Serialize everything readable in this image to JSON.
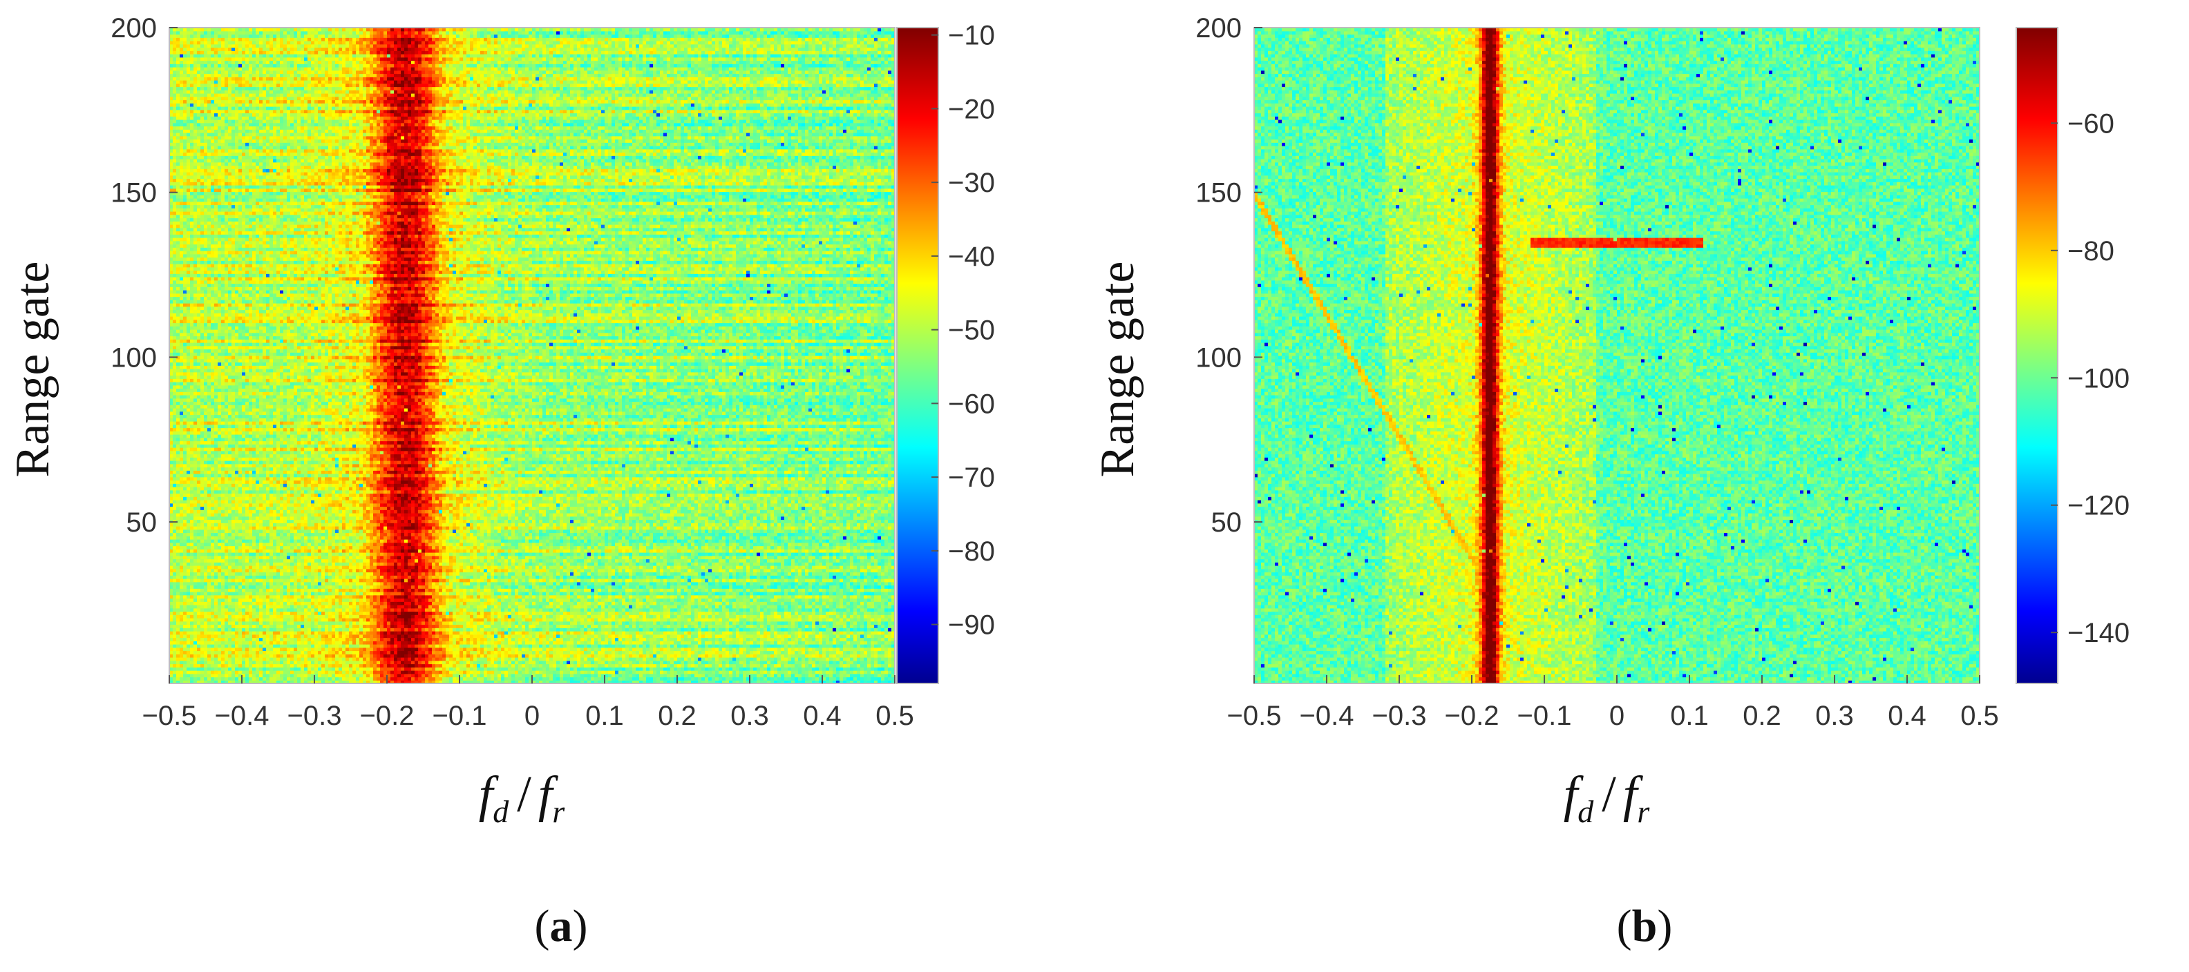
{
  "chart_data": [
    {
      "type": "heatmap",
      "panel_label_open": "(",
      "panel_label": "a",
      "panel_label_close": ")",
      "ylabel": "Range gate",
      "xlabel_f": "f",
      "xlabel_num_sub": "d",
      "xlabel_slash": "/",
      "xlabel_den_sub": "r",
      "xlim": [
        -0.5,
        0.5
      ],
      "ylim": [
        1,
        200
      ],
      "x_ticks": [
        -0.5,
        -0.4,
        -0.3,
        -0.2,
        -0.1,
        0,
        0.1,
        0.2,
        0.3,
        0.4,
        0.5
      ],
      "x_tick_labels": [
        "−0.5",
        "−0.4",
        "−0.3",
        "−0.2",
        "−0.1",
        "0",
        "0.1",
        "0.2",
        "0.3",
        "0.4",
        "0.5"
      ],
      "y_ticks": [
        50,
        100,
        150,
        200
      ],
      "y_tick_labels": [
        "50",
        "100",
        "150",
        "200"
      ],
      "colorbar_range": [
        -98,
        -9
      ],
      "colorbar_ticks": [
        -90,
        -80,
        -70,
        -60,
        -50,
        -40,
        -30,
        -20,
        -10
      ],
      "colorbar_tick_labels": [
        "−90",
        "−80",
        "−70",
        "−60",
        "−50",
        "−40",
        "−30",
        "−20",
        "−10"
      ],
      "colormap": "jet",
      "features": {
        "ridge_center_fdfr": -0.175,
        "ridge_peak_dB": -15,
        "background_left_dB": -47,
        "background_right_dB": -53,
        "ridge_width_fdfr": 0.13
      }
    },
    {
      "type": "heatmap",
      "panel_label_open": "(",
      "panel_label": "b",
      "panel_label_close": ")",
      "ylabel": "Range gate",
      "xlabel_f": "f",
      "xlabel_num_sub": "d",
      "xlabel_slash": "/",
      "xlabel_den_sub": "r",
      "xlim": [
        -0.5,
        0.5
      ],
      "ylim": [
        1,
        200
      ],
      "x_ticks": [
        -0.5,
        -0.4,
        -0.3,
        -0.2,
        -0.1,
        0,
        0.1,
        0.2,
        0.3,
        0.4,
        0.5
      ],
      "x_tick_labels": [
        "−0.5",
        "−0.4",
        "−0.3",
        "−0.2",
        "−0.1",
        "0",
        "0.1",
        "0.2",
        "0.3",
        "0.4",
        "0.5"
      ],
      "y_ticks": [
        50,
        100,
        150,
        200
      ],
      "y_tick_labels": [
        "50",
        "100",
        "150",
        "200"
      ],
      "colorbar_range": [
        -148,
        -45
      ],
      "colorbar_ticks": [
        -140,
        -120,
        -100,
        -80,
        -60
      ],
      "colorbar_tick_labels": [
        "−140",
        "−120",
        "−100",
        "−80",
        "−60"
      ],
      "colormap": "jet",
      "features": {
        "ridge_center_fdfr": -0.175,
        "ridge_peak_dB": -52,
        "background_dB": -100,
        "ridge_width_fdfr": 0.02,
        "skirt_range_fdfr": [
          -0.32,
          -0.03
        ],
        "horizontal_streak": {
          "range_gate": 135,
          "from_fdfr": -0.12,
          "to_fdfr": 0.12
        },
        "diagonal_line": {
          "from": [
            -0.5,
            150
          ],
          "to": [
            -0.17,
            28
          ]
        }
      }
    }
  ]
}
